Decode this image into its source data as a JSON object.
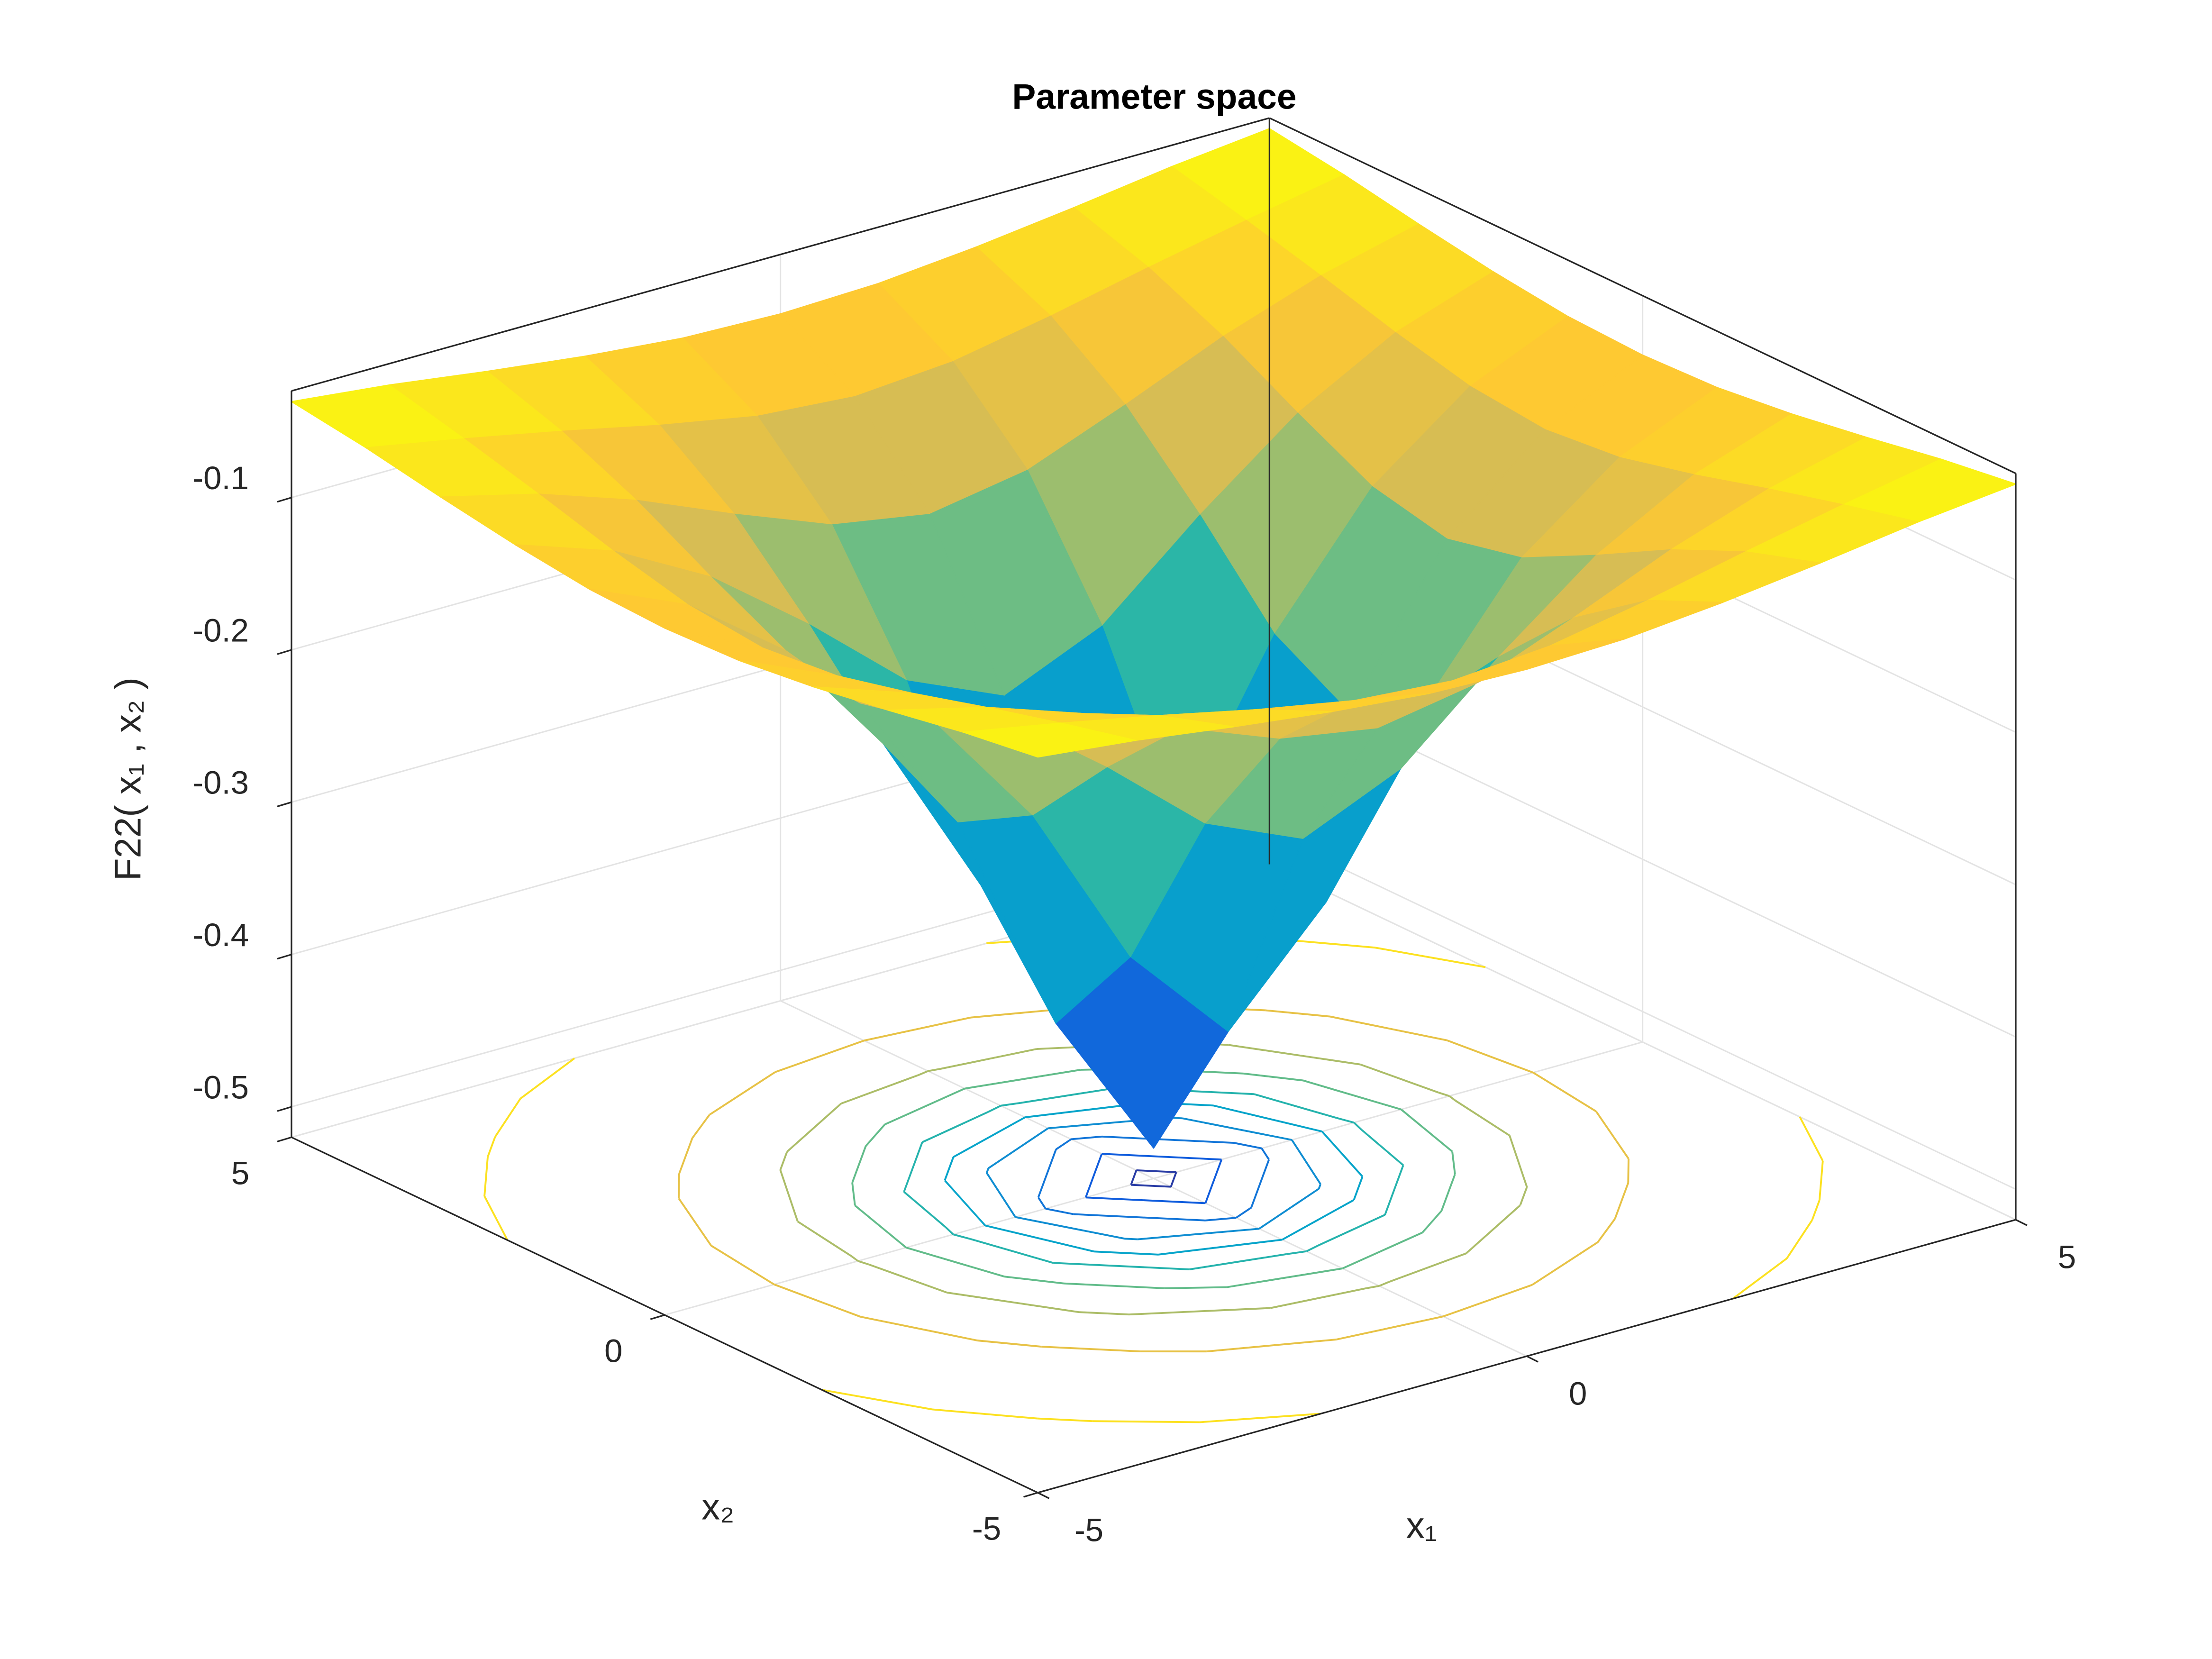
{
  "chart_data": {
    "type": "surface",
    "title": "Parameter space",
    "xlabel": "x₁",
    "ylabel": "x₂",
    "zlabel": "F22( x₁ , x₂ )",
    "x": [
      -5,
      -4,
      -3,
      -2,
      -1,
      0,
      1,
      2,
      3,
      4,
      5
    ],
    "y": [
      -5,
      -4,
      -3,
      -2,
      -1,
      0,
      1,
      2,
      3,
      4,
      5
    ],
    "z": [
      [
        -0.037,
        -0.044,
        -0.053,
        -0.061,
        -0.067,
        -0.069,
        -0.067,
        -0.061,
        -0.053,
        -0.044,
        -0.037
      ],
      [
        -0.044,
        -0.056,
        -0.069,
        -0.083,
        -0.095,
        -0.1,
        -0.095,
        -0.083,
        -0.069,
        -0.056,
        -0.044
      ],
      [
        -0.053,
        -0.069,
        -0.091,
        -0.118,
        -0.143,
        -0.154,
        -0.143,
        -0.118,
        -0.091,
        -0.069,
        -0.053
      ],
      [
        -0.061,
        -0.083,
        -0.118,
        -0.167,
        -0.222,
        -0.25,
        -0.222,
        -0.167,
        -0.118,
        -0.083,
        -0.061
      ],
      [
        -0.067,
        -0.095,
        -0.143,
        -0.222,
        -0.333,
        -0.4,
        -0.333,
        -0.222,
        -0.143,
        -0.095,
        -0.067
      ],
      [
        -0.069,
        -0.1,
        -0.154,
        -0.25,
        -0.4,
        -0.5,
        -0.4,
        -0.25,
        -0.154,
        -0.1,
        -0.069
      ],
      [
        -0.067,
        -0.095,
        -0.143,
        -0.222,
        -0.333,
        -0.4,
        -0.333,
        -0.222,
        -0.143,
        -0.095,
        -0.067
      ],
      [
        -0.061,
        -0.083,
        -0.118,
        -0.167,
        -0.222,
        -0.25,
        -0.222,
        -0.167,
        -0.118,
        -0.083,
        -0.061
      ],
      [
        -0.053,
        -0.069,
        -0.091,
        -0.118,
        -0.143,
        -0.154,
        -0.143,
        -0.118,
        -0.091,
        -0.069,
        -0.053
      ],
      [
        -0.044,
        -0.056,
        -0.069,
        -0.083,
        -0.095,
        -0.1,
        -0.095,
        -0.083,
        -0.069,
        -0.056,
        -0.044
      ],
      [
        -0.037,
        -0.044,
        -0.053,
        -0.061,
        -0.067,
        -0.069,
        -0.067,
        -0.061,
        -0.053,
        -0.044,
        -0.037
      ]
    ],
    "xlim": [
      -5,
      5
    ],
    "ylim": [
      -5,
      5
    ],
    "zlim": [
      -0.52,
      -0.03
    ],
    "xticks": [
      -5,
      0,
      5
    ],
    "yticks": [
      -5,
      0,
      5
    ],
    "zticks": [
      -0.5,
      -0.4,
      -0.3,
      -0.2,
      -0.1
    ],
    "grid": true,
    "contour": true,
    "colormap": "parula"
  }
}
